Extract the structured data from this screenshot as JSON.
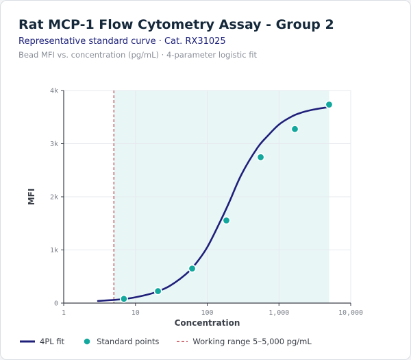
{
  "header": {
    "title": "Rat MCP-1 Flow Cytometry Assay - Group 2",
    "subtitle": "Representative standard curve · Cat. RX31025",
    "caption": "Bead MFI vs. concentration (pg/mL) · 4-parameter logistic fit"
  },
  "colors": {
    "curve": "#1f1f7a",
    "points": "#13a89e",
    "range_line": "#c0414b",
    "range_fill": "#e8f6f6"
  },
  "chart_data": {
    "type": "scatter",
    "title": "Rat MCP-1 Flow Cytometry Assay - Group 2",
    "xlabel": "Concentration",
    "ylabel": "MFI",
    "x_scale": "log",
    "xlim": [
      1,
      10000
    ],
    "ylim": [
      0,
      4000
    ],
    "x_ticks": [
      1,
      10,
      100,
      1000,
      10000
    ],
    "x_tick_labels": [
      "1",
      "10",
      "100",
      "1,000",
      "10,000"
    ],
    "y_ticks": [
      0,
      1000,
      2000,
      3000,
      4000
    ],
    "y_tick_labels": [
      "0",
      "1k",
      "2k",
      "3k",
      "4k"
    ],
    "grid": true,
    "legend_position": "bottom-left",
    "series": [
      {
        "name": "Standard points",
        "type": "scatter",
        "x": [
          6.9,
          20.6,
          61.7,
          185,
          556,
          1667,
          5000
        ],
        "y": [
          80,
          225,
          650,
          1555,
          2745,
          3275,
          3735
        ]
      },
      {
        "name": "4PL fit",
        "type": "line",
        "x": [
          3,
          5,
          7,
          10,
          15,
          20,
          30,
          50,
          70,
          100,
          150,
          200,
          300,
          500,
          700,
          1000,
          1500,
          2000,
          3000,
          5000
        ],
        "y": [
          40,
          60,
          78,
          110,
          162,
          215,
          322,
          540,
          750,
          1050,
          1520,
          1880,
          2420,
          2920,
          3150,
          3360,
          3510,
          3580,
          3640,
          3690
        ]
      }
    ],
    "working_range": {
      "name": "Working range 5–5,000 pg/mL",
      "from": 5,
      "to": 5000
    }
  },
  "legend": {
    "fit_label": "4PL fit",
    "points_label": "Standard points",
    "range_label": "Working range 5–5,000 pg/mL"
  }
}
